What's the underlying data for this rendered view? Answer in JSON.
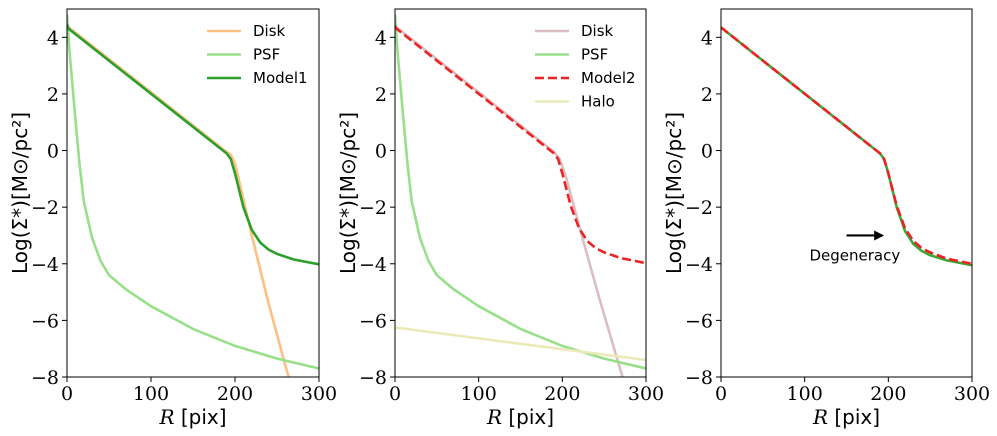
{
  "chart_data": [
    {
      "type": "line",
      "panel": "left",
      "xlabel": "R [pix]",
      "ylabel": "Log(Σ*)[M⊙/pc²]",
      "xlim": [
        0,
        300
      ],
      "ylim": [
        -8,
        5
      ],
      "xticks": [
        0,
        100,
        200,
        300
      ],
      "yticks": [
        4,
        2,
        0,
        -2,
        -4,
        -6,
        -8
      ],
      "xtick_labels": [
        "0",
        "100",
        "200",
        "300"
      ],
      "ytick_labels": [
        "4",
        "2",
        "0",
        "−2",
        "−4",
        "−6",
        "−8"
      ],
      "legend_position": "top-right",
      "series": [
        {
          "name": "Disk",
          "color": "#ffbf80",
          "dash": "solid",
          "x": [
            0,
            190,
            195,
            200,
            220,
            240,
            260,
            270
          ],
          "y": [
            4.4,
            -0.05,
            -0.15,
            -0.45,
            -3.0,
            -5.4,
            -7.6,
            -8.6
          ]
        },
        {
          "name": "PSF",
          "color": "#98df8a",
          "dash": "solid",
          "x": [
            0,
            3,
            6,
            10,
            15,
            20,
            30,
            40,
            50,
            70,
            100,
            150,
            200,
            250,
            300
          ],
          "y": [
            4.8,
            3.5,
            2.5,
            1.1,
            -0.5,
            -1.8,
            -3.1,
            -3.9,
            -4.4,
            -4.9,
            -5.5,
            -6.3,
            -6.9,
            -7.35,
            -7.7
          ]
        },
        {
          "name": "Model1",
          "color": "#2ca02c",
          "dash": "solid",
          "x": [
            0,
            2,
            190,
            195,
            200,
            210,
            220,
            230,
            240,
            250,
            270,
            300
          ],
          "y": [
            4.45,
            4.3,
            -0.1,
            -0.3,
            -0.8,
            -2.0,
            -2.8,
            -3.25,
            -3.5,
            -3.65,
            -3.85,
            -4.02
          ]
        }
      ]
    },
    {
      "type": "line",
      "panel": "middle",
      "xlabel": "R [pix]",
      "ylabel": "Log(Σ*)[M⊙/pc²]",
      "xlim": [
        0,
        300
      ],
      "ylim": [
        -8,
        5
      ],
      "xticks": [
        0,
        100,
        200,
        300
      ],
      "yticks": [
        4,
        2,
        0,
        -2,
        -4,
        -6,
        -8
      ],
      "xtick_labels": [
        "0",
        "100",
        "200",
        "300"
      ],
      "ytick_labels": [
        "4",
        "2",
        "0",
        "−2",
        "−4",
        "−6",
        "−8"
      ],
      "legend_position": "top-right",
      "series": [
        {
          "name": "Disk",
          "color": "#dbbfc0",
          "dash": "solid",
          "x": [
            0,
            190,
            197,
            205,
            225,
            245,
            265,
            278
          ],
          "y": [
            4.4,
            -0.05,
            -0.3,
            -1.0,
            -3.2,
            -5.3,
            -7.3,
            -8.6
          ]
        },
        {
          "name": "PSF",
          "color": "#98df8a",
          "dash": "solid",
          "x": [
            0,
            3,
            6,
            10,
            15,
            20,
            30,
            40,
            50,
            70,
            100,
            150,
            200,
            250,
            300
          ],
          "y": [
            4.8,
            3.5,
            2.5,
            1.1,
            -0.5,
            -1.8,
            -3.1,
            -3.9,
            -4.4,
            -4.9,
            -5.5,
            -6.3,
            -6.9,
            -7.35,
            -7.7
          ]
        },
        {
          "name": "Model2",
          "color": "#ee2222",
          "dash": "dashed",
          "x": [
            0,
            2,
            190,
            195,
            200,
            210,
            220,
            230,
            240,
            250,
            270,
            300
          ],
          "y": [
            4.4,
            4.3,
            -0.1,
            -0.3,
            -0.8,
            -1.95,
            -2.75,
            -3.2,
            -3.45,
            -3.6,
            -3.8,
            -3.98
          ]
        },
        {
          "name": "Halo",
          "color": "#eaeab8",
          "dash": "solid",
          "x": [
            0,
            300
          ],
          "y": [
            -6.25,
            -7.4
          ]
        }
      ]
    },
    {
      "type": "line",
      "panel": "right",
      "xlabel": "R [pix]",
      "ylabel": "Log(Σ*)[M⊙/pc²]",
      "xlim": [
        0,
        300
      ],
      "ylim": [
        -8,
        5
      ],
      "xticks": [
        0,
        100,
        200,
        300
      ],
      "yticks": [
        4,
        2,
        0,
        -2,
        -4,
        -6,
        -8
      ],
      "xtick_labels": [
        "0",
        "100",
        "200",
        "300"
      ],
      "ytick_labels": [
        "4",
        "2",
        "0",
        "−2",
        "−4",
        "−6",
        "−8"
      ],
      "annotation": {
        "text": "Degeneracy",
        "arrow_from": [
          150,
          -3.0
        ],
        "arrow_to": [
          195,
          -3.0
        ],
        "text_at": [
          160,
          -3.7
        ]
      },
      "series": [
        {
          "name": "Model1",
          "color": "#3aa83a",
          "dash": "solid",
          "x": [
            0,
            2,
            190,
            195,
            200,
            210,
            220,
            230,
            240,
            250,
            270,
            300
          ],
          "y": [
            4.35,
            4.3,
            -0.1,
            -0.3,
            -0.8,
            -2.0,
            -2.85,
            -3.3,
            -3.55,
            -3.7,
            -3.88,
            -4.05
          ]
        },
        {
          "name": "Model2",
          "color": "#ee2222",
          "dash": "dashed",
          "x": [
            0,
            2,
            190,
            195,
            200,
            210,
            220,
            230,
            240,
            250,
            270,
            300
          ],
          "y": [
            4.35,
            4.3,
            -0.1,
            -0.3,
            -0.8,
            -1.95,
            -2.75,
            -3.2,
            -3.45,
            -3.6,
            -3.82,
            -4.0
          ]
        }
      ]
    }
  ]
}
